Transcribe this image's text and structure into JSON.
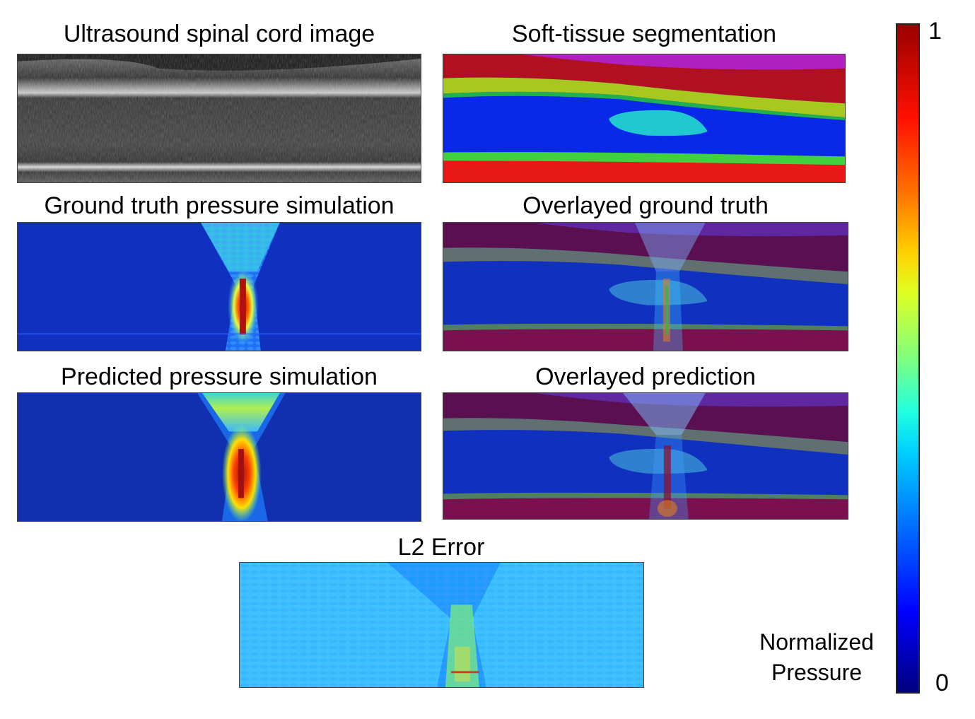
{
  "panels": {
    "ultrasound": {
      "title": "Ultrasound spinal cord image"
    },
    "segmentation": {
      "title": "Soft-tissue segmentation"
    },
    "ground_truth": {
      "title": "Ground truth pressure simulation"
    },
    "overlay_gt": {
      "title": "Overlayed ground truth"
    },
    "predicted": {
      "title": "Predicted pressure simulation"
    },
    "overlay_pred": {
      "title": "Overlayed prediction"
    },
    "error": {
      "title": "L2 Error"
    }
  },
  "colorbar": {
    "max_label": "1",
    "min_label": "0",
    "title_line1": "Normalized",
    "title_line2": "Pressure",
    "colormap": "jet",
    "range": [
      0,
      1
    ]
  },
  "colors": {
    "segmentation_fat": "#e01010",
    "segmentation_top": "#b020c0",
    "segmentation_band": "#a8c820",
    "segmentation_cord": "#0a28e8",
    "segmentation_lesion": "#20c8d0",
    "field_background": "#1030c0"
  }
}
